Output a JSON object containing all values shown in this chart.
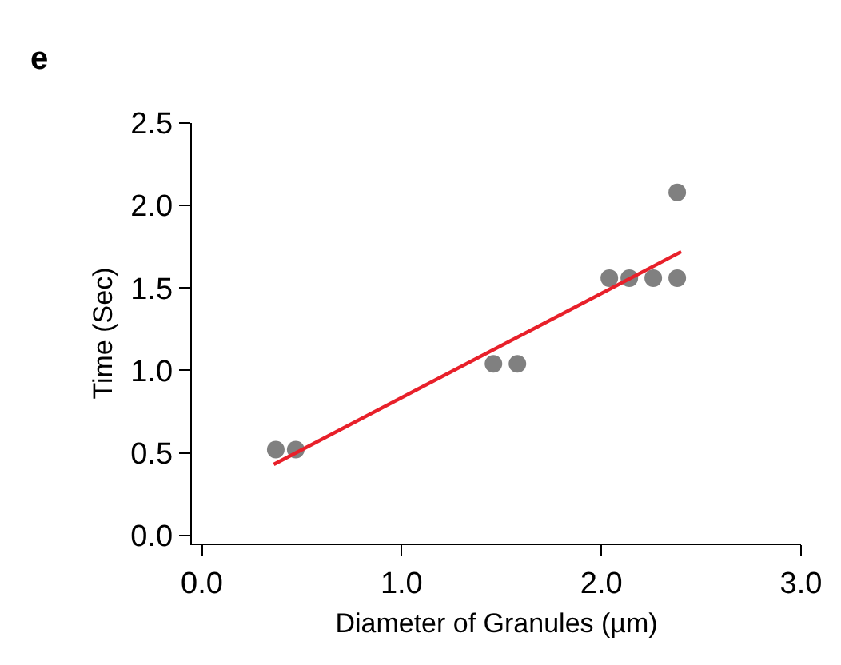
{
  "chart_data": {
    "type": "scatter",
    "xlabel": "Diameter of Granules (µm)",
    "ylabel": "Time (Sec)",
    "annotations": [
      "e"
    ],
    "series": [
      {
        "marker": "circle",
        "color": "#808080",
        "x": [
          0.37,
          0.47,
          1.46,
          1.58,
          2.04,
          2.14,
          2.26,
          2.38,
          2.38
        ],
        "values": [
          0.52,
          0.52,
          1.04,
          1.04,
          1.56,
          1.56,
          1.56,
          1.56,
          2.08
        ]
      },
      {
        "type": "line",
        "color": "#e8202a",
        "x": [
          0.36,
          2.4
        ],
        "values": [
          0.43,
          1.72
        ]
      }
    ],
    "xlim": [
      -0.05,
      3.0
    ],
    "ylim": [
      -0.05,
      2.5
    ],
    "xticks": [
      {
        "value": 0,
        "label": "0.0"
      },
      {
        "value": 1,
        "label": "1.0"
      },
      {
        "value": 2,
        "label": "2.0"
      },
      {
        "value": 3,
        "label": "3.0"
      }
    ],
    "yticks": [
      {
        "value": 0,
        "label": "0.0"
      },
      {
        "value": 0.5,
        "label": "0.5"
      },
      {
        "value": 1,
        "label": "1.0"
      },
      {
        "value": 1.5,
        "label": "1.5"
      },
      {
        "value": 2,
        "label": "2.0"
      },
      {
        "value": 2.5,
        "label": "2.5"
      }
    ],
    "tick_labels": "xy"
  }
}
